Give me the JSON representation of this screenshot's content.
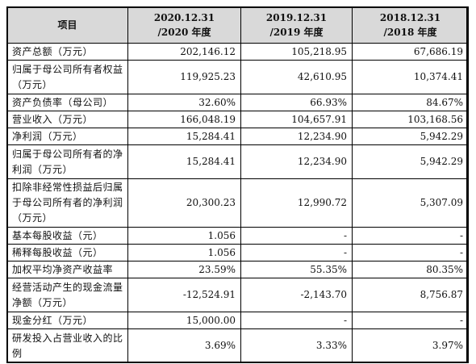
{
  "table": {
    "headers": {
      "item": "项目",
      "col1_line1": "2020.12.31",
      "col1_line2": "/2020 年度",
      "col2_line1": "2019.12.31",
      "col2_line2": "/2019 年度",
      "col3_line1": "2018.12.31",
      "col3_line2": "/2018 年度"
    },
    "rows": [
      {
        "label": "资产总额（万元）",
        "v2020": "202,146.12",
        "v2019": "105,218.95",
        "v2018": "67,686.19"
      },
      {
        "label": "归属于母公司所有者权益（万元）",
        "v2020": "119,925.23",
        "v2019": "42,610.95",
        "v2018": "10,374.41"
      },
      {
        "label": "资产负债率（母公司）",
        "v2020": "32.60%",
        "v2019": "66.93%",
        "v2018": "84.67%"
      },
      {
        "label": "营业收入（万元）",
        "v2020": "166,048.19",
        "v2019": "104,657.91",
        "v2018": "103,168.56"
      },
      {
        "label": "净利润（万元）",
        "v2020": "15,284.41",
        "v2019": "12,234.90",
        "v2018": "5,942.29"
      },
      {
        "label": "归属于母公司所有者的净利润（万元）",
        "v2020": "15,284.41",
        "v2019": "12,234.90",
        "v2018": "5,942.29"
      },
      {
        "label": "扣除非经常性损益后归属于母公司所有者的净利润（万元）",
        "v2020": "20,300.23",
        "v2019": "12,990.72",
        "v2018": "5,307.09"
      },
      {
        "label": "基本每股收益（元）",
        "v2020": "1.056",
        "v2019": "-",
        "v2018": "-"
      },
      {
        "label": "稀释每股收益（元）",
        "v2020": "1.056",
        "v2019": "-",
        "v2018": "-"
      },
      {
        "label": "加权平均净资产收益率",
        "v2020": "23.59%",
        "v2019": "55.35%",
        "v2018": "80.35%"
      },
      {
        "label": "经营活动产生的现金流量净额（万元）",
        "v2020": "-12,524.91",
        "v2019": "-2,143.70",
        "v2018": "8,756.87"
      },
      {
        "label": "现金分红（万元）",
        "v2020": "15,000.00",
        "v2019": "-",
        "v2018": "-"
      },
      {
        "label": "研发投入占营业收入的比例",
        "v2020": "3.69%",
        "v2019": "3.33%",
        "v2018": "3.97%"
      }
    ]
  }
}
